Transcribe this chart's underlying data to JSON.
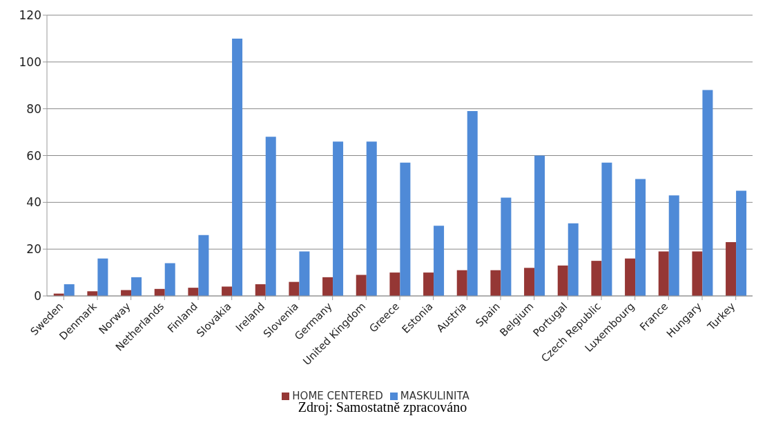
{
  "chart_data": {
    "type": "bar",
    "categories": [
      "Sweden",
      "Denmark",
      "Norway",
      "Netherlands",
      "Finland",
      "Slovakia",
      "Ireland",
      "Slovenia",
      "Germany",
      "United Kingdom",
      "Greece",
      "Estonia",
      "Austria",
      "Spain",
      "Belgium",
      "Portugal",
      "Czech Republic",
      "Luxembourg",
      "France",
      "Hungary",
      "Turkey"
    ],
    "series": [
      {
        "name": "HOME CENTERED",
        "color": "#953735",
        "values": [
          1,
          2,
          2.5,
          3,
          3.5,
          4,
          5,
          6,
          8,
          9,
          10,
          10,
          11,
          11,
          12,
          13,
          15,
          16,
          19,
          19,
          23
        ]
      },
      {
        "name": "MASKULINITA",
        "color": "#4f8ad7",
        "values": [
          5,
          16,
          8,
          14,
          26,
          110,
          68,
          19,
          66,
          66,
          57,
          30,
          79,
          42,
          60,
          31,
          57,
          50,
          43,
          88,
          45
        ]
      }
    ],
    "ylim": [
      0,
      120
    ],
    "yticks": [
      0,
      20,
      40,
      60,
      80,
      100,
      120
    ],
    "grid": "y",
    "legend": "bottom",
    "annotations": [
      "Zdroj: Samostatně zpracováno"
    ]
  }
}
